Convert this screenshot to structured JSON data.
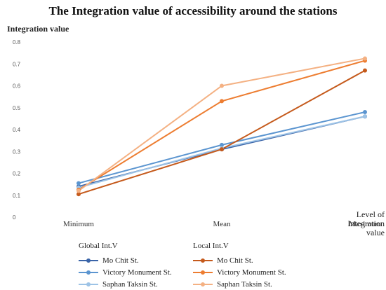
{
  "chart_data": {
    "type": "line",
    "title": "The Integration value of accessibility around the stations",
    "ylabel": "Integration value",
    "xlabel_lines": [
      "Level of",
      "Integration value"
    ],
    "categories": [
      "Minimum",
      "Mean",
      "Maximum"
    ],
    "ylim": [
      0,
      0.8
    ],
    "yticks": [
      "0",
      "0.1",
      "0.2",
      "0.3",
      "0.4",
      "0.5",
      "0.6",
      "0.7",
      "0.8"
    ],
    "grid": false,
    "legend_position": "bottom",
    "groups": [
      {
        "title": "Global Int.V",
        "series_indices": [
          0,
          1,
          2
        ]
      },
      {
        "title": "Local Int.V",
        "series_indices": [
          3,
          4,
          5
        ]
      }
    ],
    "series": [
      {
        "name": "Mo Chit St.",
        "color": "#3a64a8",
        "values": [
          0.14,
          0.31,
          0.46
        ]
      },
      {
        "name": "Victory Monument St.",
        "color": "#5b95d0",
        "values": [
          0.155,
          0.33,
          0.48
        ]
      },
      {
        "name": "Saphan Taksin St.",
        "color": "#9dc3e6",
        "values": [
          0.135,
          0.315,
          0.46
        ]
      },
      {
        "name": "Mo Chit St.",
        "color": "#c55a1c",
        "values": [
          0.105,
          0.31,
          0.67
        ]
      },
      {
        "name": "Victory Monument St.",
        "color": "#ed7d31",
        "values": [
          0.125,
          0.53,
          0.715
        ]
      },
      {
        "name": "Saphan Taksin St.",
        "color": "#f4b183",
        "values": [
          0.12,
          0.6,
          0.725
        ]
      }
    ]
  }
}
